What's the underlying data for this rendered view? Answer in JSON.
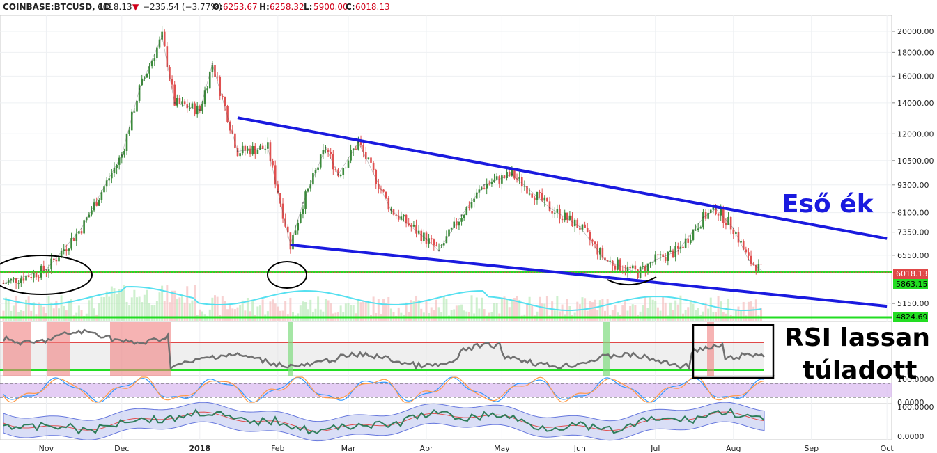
{
  "header": {
    "symbol": "COINBASE:BTCUSD, 1D",
    "last": "6018.13",
    "change": "−235.54 (−3.77%)",
    "o_label": "O:",
    "o_val": "6253.67",
    "h_label": "H:",
    "h_val": "6258.32",
    "l_label": "L:",
    "l_val": "5900.00",
    "c_label": "C:",
    "c_val": "6018.13",
    "down_color": "#d0021b"
  },
  "annotations": {
    "wedge_label": "Eső ék",
    "rsi_label_line1": "RSI lassan",
    "rsi_label_line2": "túladott"
  },
  "price_badges": {
    "last_price": "6018.13",
    "support_1": "5863.15",
    "support_2": "4824.69"
  },
  "colors": {
    "up": "#3a8a3a",
    "down": "#e05050",
    "trendline": "#1a1adf",
    "support": "#22dd22",
    "volume_ma": "#55e0f0",
    "rsi": "#707070",
    "stoch_k": "#3399ff",
    "stoch_d": "#ff9944"
  },
  "chart_data": {
    "type": "line",
    "title": "COINBASE:BTCUSD, 1D",
    "x": [
      "Oct 15",
      "Nov 1",
      "Nov 15",
      "Dec 1",
      "Dec 8",
      "Dec 17",
      "Dec 22",
      "Jan 1",
      "Jan 6",
      "Jan 16",
      "Jan 28",
      "Feb 1",
      "Feb 6",
      "Feb 11",
      "Feb 20",
      "Feb 25",
      "Mar 5",
      "Mar 18",
      "Apr 1",
      "Apr 6",
      "Apr 15",
      "Apr 24",
      "May 5",
      "May 20",
      "Jun 1",
      "Jun 11",
      "Jun 24",
      "Jul 1",
      "Jul 10",
      "Jul 20",
      "Jul 25",
      "Aug 1",
      "Aug 7",
      "Aug 13"
    ],
    "series": [
      {
        "values": [
          5700,
          6100,
          7500,
          10800,
          15000,
          19500,
          14000,
          13500,
          17000,
          11000,
          11200,
          9000,
          6900,
          8500,
          11200,
          9800,
          11500,
          8200,
          7100,
          6700,
          8000,
          9300,
          9800,
          8300,
          7550,
          6400,
          6000,
          6400,
          6700,
          7900,
          8250,
          7500,
          6400,
          6018
        ]
      }
    ],
    "trendlines": [
      {
        "name": "upper",
        "from": [
          "Jan 16",
          13000
        ],
        "to": [
          "Oct 1",
          7120
        ]
      },
      {
        "name": "lower",
        "from": [
          "Feb 6",
          6900
        ],
        "to": [
          "Oct 1",
          5080
        ]
      }
    ],
    "support_levels": [
      5863.15,
      4824.69
    ],
    "x_ticks": [
      "Nov",
      "Dec",
      "2018",
      "Feb",
      "Mar",
      "Apr",
      "May",
      "Jun",
      "Jul",
      "Aug",
      "Sep",
      "Oct"
    ],
    "y_ticks": [
      "20000.00",
      "18000.00",
      "16000.00",
      "14000.00",
      "12000.00",
      "10500.00",
      "9300.00",
      "8100.00",
      "7350.00",
      "6550.00",
      "5150.00"
    ],
    "ylim": [
      4700,
      21000
    ],
    "y_scale": "log",
    "indicator_ticks": [
      "100.0000",
      "0.0000",
      "100.0000",
      "0.0000"
    ],
    "grid": true,
    "legend": "none"
  }
}
